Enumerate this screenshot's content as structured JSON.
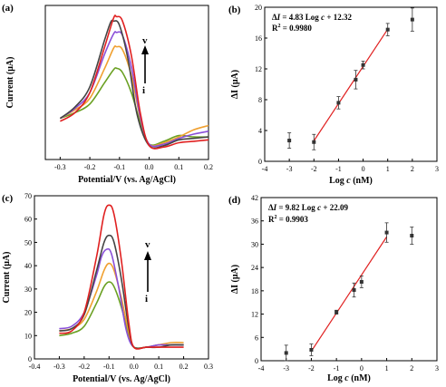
{
  "chart_data": [
    {
      "panel": "(a)",
      "type": "line",
      "xlabel": "Potential/V (vs. Ag/AgCl)",
      "ylabel": "Current (μA)",
      "xlim": [
        -0.35,
        0.2
      ],
      "xticks": [
        -0.3,
        -0.2,
        -0.1,
        0.0,
        0.1,
        0.2
      ],
      "xtick_labels": [
        "-0.3",
        "-0.2",
        "-0.1",
        "0.0",
        "0.1",
        "0.2"
      ],
      "y_tick_labels_shown": false,
      "arrow_label_top": "v",
      "arrow_label_bottom": "i",
      "series": [
        {
          "color": "#6aa022",
          "x": [
            -0.3,
            -0.25,
            -0.2,
            -0.15,
            -0.12,
            -0.11,
            -0.09,
            -0.06,
            -0.03,
            0.0,
            0.05,
            0.1,
            0.15,
            0.2
          ],
          "values": [
            0.3,
            0.34,
            0.4,
            0.55,
            0.64,
            0.65,
            0.62,
            0.48,
            0.27,
            0.12,
            0.14,
            0.18,
            0.17,
            0.17
          ]
        },
        {
          "color": "#f0a030",
          "x": [
            -0.3,
            -0.25,
            -0.2,
            -0.15,
            -0.12,
            -0.11,
            -0.09,
            -0.06,
            -0.03,
            0.0,
            0.05,
            0.1,
            0.15,
            0.2
          ],
          "values": [
            0.3,
            0.36,
            0.44,
            0.65,
            0.79,
            0.8,
            0.78,
            0.6,
            0.3,
            0.12,
            0.13,
            0.17,
            0.22,
            0.25
          ]
        },
        {
          "color": "#8a4fd8",
          "x": [
            -0.3,
            -0.25,
            -0.2,
            -0.15,
            -0.12,
            -0.11,
            -0.09,
            -0.06,
            -0.03,
            0.0,
            0.05,
            0.1,
            0.15,
            0.2
          ],
          "values": [
            0.3,
            0.37,
            0.48,
            0.75,
            0.89,
            0.9,
            0.88,
            0.66,
            0.31,
            0.12,
            0.12,
            0.16,
            0.19,
            0.21
          ]
        },
        {
          "color": "#444444",
          "x": [
            -0.3,
            -0.25,
            -0.2,
            -0.15,
            -0.13,
            -0.12,
            -0.1,
            -0.07,
            -0.04,
            0.0,
            0.05,
            0.1,
            0.15,
            0.2
          ],
          "values": [
            0.3,
            0.38,
            0.52,
            0.85,
            0.97,
            0.98,
            0.95,
            0.7,
            0.32,
            0.11,
            0.11,
            0.15,
            0.16,
            0.17
          ]
        },
        {
          "color": "#e02020",
          "x": [
            -0.3,
            -0.25,
            -0.2,
            -0.15,
            -0.12,
            -0.11,
            -0.09,
            -0.06,
            -0.03,
            0.0,
            0.05,
            0.1,
            0.15,
            0.2
          ],
          "values": [
            0.28,
            0.34,
            0.48,
            0.8,
            1.0,
            1.01,
            0.98,
            0.74,
            0.34,
            0.11,
            0.1,
            0.13,
            0.14,
            0.15
          ]
        }
      ]
    },
    {
      "panel": "(b)",
      "type": "scatter",
      "xlabel": "Log c (nM)",
      "xlabel_main": "Log ",
      "xlabel_var": "c",
      "xlabel_unit": " (nM)",
      "ylabel": "ΔI (μA)",
      "xlim": [
        -4,
        3
      ],
      "ylim": [
        0,
        20
      ],
      "xticks": [
        -4,
        -3,
        -2,
        -1,
        0,
        1,
        2,
        3
      ],
      "yticks": [
        0,
        4,
        8,
        12,
        16,
        20
      ],
      "equation": "ΔI = 4.83 Log c + 12.32",
      "eq_parts": [
        "Δ",
        "I",
        " = 4.83 Log ",
        "c",
        " + 12.32"
      ],
      "r2": "R² = 0.9980",
      "r2_main": "R",
      "r2_sup": "2",
      "r2_value": " = 0.9980",
      "points": [
        {
          "x": -3,
          "y": 2.7,
          "err": 1.0
        },
        {
          "x": -2,
          "y": 2.5,
          "err": 1.0
        },
        {
          "x": -1,
          "y": 7.6,
          "err": 0.8
        },
        {
          "x": -0.3,
          "y": 10.6,
          "err": 1.2
        },
        {
          "x": 0,
          "y": 12.5,
          "err": 0.5
        },
        {
          "x": 1,
          "y": 17.1,
          "err": 0.8
        },
        {
          "x": 2,
          "y": 18.4,
          "err": 1.5
        }
      ],
      "fit": {
        "slope": 4.83,
        "intercept": 12.32,
        "x_range": [
          -2,
          1
        ],
        "color": "#e02020"
      }
    },
    {
      "panel": "(c)",
      "type": "line",
      "xlabel": "Potential/V (vs. Ag/AgCl)",
      "ylabel": "Current (μA)",
      "xlim": [
        -0.4,
        0.3
      ],
      "xticks": [
        -0.4,
        -0.3,
        -0.2,
        -0.1,
        0.0,
        0.1,
        0.2,
        0.3
      ],
      "xtick_labels": [
        "-0.4",
        "-0.3",
        "-0.2",
        "-0.1",
        "0.0",
        "0.1",
        "0.2",
        "0.3"
      ],
      "ylim": [
        0,
        70
      ],
      "yticks": [
        0,
        10,
        20,
        30,
        40,
        50,
        60,
        70
      ],
      "arrow_label_top": "v",
      "arrow_label_bottom": "i",
      "series": [
        {
          "color": "#6aa022",
          "x": [
            -0.3,
            -0.25,
            -0.2,
            -0.15,
            -0.12,
            -0.1,
            -0.08,
            -0.05,
            -0.02,
            0.0,
            0.05,
            0.1,
            0.15,
            0.2
          ],
          "values": [
            10,
            11,
            14,
            24,
            31,
            33,
            31,
            22,
            10,
            5,
            5,
            6,
            6,
            6
          ]
        },
        {
          "color": "#f0a030",
          "x": [
            -0.3,
            -0.25,
            -0.2,
            -0.15,
            -0.12,
            -0.1,
            -0.08,
            -0.05,
            -0.02,
            0.0,
            0.05,
            0.1,
            0.15,
            0.2
          ],
          "values": [
            12,
            13,
            17,
            29,
            38,
            41,
            38,
            26,
            11,
            5,
            5,
            6,
            7,
            7
          ]
        },
        {
          "color": "#8a4fd8",
          "x": [
            -0.3,
            -0.25,
            -0.2,
            -0.15,
            -0.13,
            -0.11,
            -0.09,
            -0.06,
            -0.03,
            0.0,
            0.05,
            0.1,
            0.15,
            0.2
          ],
          "values": [
            13,
            14,
            20,
            36,
            44,
            47,
            45,
            30,
            12,
            5,
            5,
            6,
            6,
            6
          ]
        },
        {
          "color": "#444444",
          "x": [
            -0.3,
            -0.25,
            -0.2,
            -0.15,
            -0.12,
            -0.1,
            -0.08,
            -0.05,
            -0.02,
            0.0,
            0.05,
            0.1,
            0.15,
            0.2
          ],
          "values": [
            12,
            13,
            19,
            38,
            50,
            53,
            50,
            34,
            13,
            5,
            5,
            5,
            6,
            6
          ]
        },
        {
          "color": "#e02020",
          "x": [
            -0.3,
            -0.25,
            -0.2,
            -0.15,
            -0.12,
            -0.1,
            -0.08,
            -0.05,
            -0.02,
            0.0,
            0.05,
            0.1,
            0.15,
            0.2
          ],
          "values": [
            11,
            12,
            20,
            44,
            62,
            66,
            62,
            42,
            15,
            5,
            5,
            5,
            5,
            5
          ]
        }
      ]
    },
    {
      "panel": "(d)",
      "type": "scatter",
      "xlabel": "Log c (nM)",
      "xlabel_main": "Log ",
      "xlabel_var": "c",
      "xlabel_unit": " (nM)",
      "ylabel": "ΔI (μA)",
      "xlim": [
        -4,
        3
      ],
      "ylim": [
        0,
        42
      ],
      "xticks": [
        -4,
        -3,
        -2,
        -1,
        0,
        1,
        2,
        3
      ],
      "yticks": [
        0,
        6,
        12,
        18,
        24,
        30,
        36,
        42
      ],
      "equation": "ΔI = 9.82 Log c + 22.09",
      "eq_parts": [
        "Δ",
        "I",
        " = 9.82 Log ",
        "c",
        " + 22.09"
      ],
      "r2": "R² = 0.9903",
      "r2_main": "R",
      "r2_sup": "2",
      "r2_value": " = 0.9903",
      "points": [
        {
          "x": -3,
          "y": 2.0,
          "err": 2.0
        },
        {
          "x": -2,
          "y": 2.8,
          "err": 1.5
        },
        {
          "x": -1,
          "y": 12.5,
          "err": 0.5
        },
        {
          "x": -0.3,
          "y": 18.2,
          "err": 1.8
        },
        {
          "x": 0,
          "y": 20.3,
          "err": 1.5
        },
        {
          "x": 1,
          "y": 33.0,
          "err": 2.5
        },
        {
          "x": 2,
          "y": 32.2,
          "err": 2.2
        }
      ],
      "fit": {
        "slope": 9.82,
        "intercept": 22.09,
        "x_range": [
          -2,
          1
        ],
        "color": "#e02020"
      }
    }
  ]
}
